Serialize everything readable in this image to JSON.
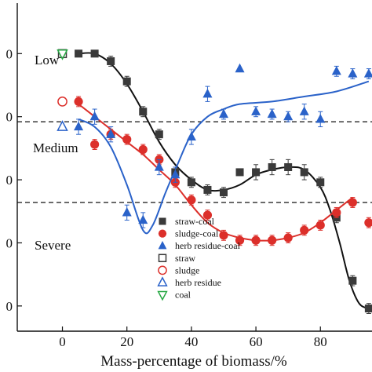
{
  "chart_data": {
    "type": "scatter",
    "title": "",
    "xlabel": "Mass-percentage of biomass/%",
    "ylabel": "",
    "xlim": [
      -14,
      96
    ],
    "ylim": [
      1.4,
      2.7
    ],
    "x_ticks": [
      0,
      20,
      40,
      60,
      80
    ],
    "y_ticks": [
      1.5,
      1.75,
      2.0,
      2.25,
      2.5
    ],
    "y_tick_labels": [
      "0",
      "0",
      "0",
      "0",
      "0"
    ],
    "grid": false,
    "legend_position": "bottom-center",
    "thresholds": [
      {
        "y": 2.23,
        "style": "dashed"
      },
      {
        "y": 1.91,
        "style": "dashed"
      }
    ],
    "zone_labels": [
      "Low",
      "Medium",
      "Severe"
    ],
    "series": [
      {
        "name": "straw-coal",
        "color": "#3a3a3a",
        "marker": "square",
        "filled": true,
        "points": [
          [
            5,
            2.5
          ],
          [
            10,
            2.5
          ],
          [
            15,
            2.47
          ],
          [
            20,
            2.39
          ],
          [
            25,
            2.27
          ],
          [
            30,
            2.18
          ],
          [
            35,
            2.03
          ],
          [
            40,
            1.99
          ],
          [
            45,
            1.96
          ],
          [
            50,
            1.95
          ],
          [
            55,
            2.03
          ],
          [
            60,
            2.03
          ],
          [
            65,
            2.05
          ],
          [
            70,
            2.05
          ],
          [
            75,
            2.03
          ],
          [
            80,
            1.99
          ],
          [
            85,
            1.85
          ],
          [
            90,
            1.6
          ],
          [
            95,
            1.49
          ]
        ],
        "err": [
          0,
          0,
          0.02,
          0.02,
          0.02,
          0.02,
          0.02,
          0.02,
          0.02,
          0.02,
          0,
          0.03,
          0.03,
          0.03,
          0.03,
          0.02,
          0.02,
          0.02,
          0.02
        ]
      },
      {
        "name": "sludge-coal",
        "color": "#dc2f2a",
        "marker": "circle",
        "filled": true,
        "points": [
          [
            5,
            2.31
          ],
          [
            10,
            2.14
          ],
          [
            15,
            2.18
          ],
          [
            20,
            2.16
          ],
          [
            25,
            2.12
          ],
          [
            30,
            2.08
          ],
          [
            35,
            1.99
          ],
          [
            40,
            1.92
          ],
          [
            45,
            1.86
          ],
          [
            50,
            1.78
          ],
          [
            55,
            1.76
          ],
          [
            60,
            1.76
          ],
          [
            65,
            1.76
          ],
          [
            70,
            1.77
          ],
          [
            75,
            1.8
          ],
          [
            80,
            1.82
          ],
          [
            85,
            1.87
          ],
          [
            90,
            1.91
          ],
          [
            95,
            1.83
          ]
        ],
        "err": [
          0.02,
          0.02,
          0.02,
          0.02,
          0.02,
          0.02,
          0.02,
          0.02,
          0.02,
          0.02,
          0.02,
          0.02,
          0.02,
          0.02,
          0.02,
          0.02,
          0.02,
          0.02,
          0.02
        ]
      },
      {
        "name": "herb residue-coal",
        "color": "#2a62c9",
        "marker": "triangle",
        "filled": true,
        "points": [
          [
            5,
            2.21
          ],
          [
            10,
            2.25
          ],
          [
            15,
            2.18
          ],
          [
            20,
            1.87
          ],
          [
            25,
            1.84
          ],
          [
            30,
            2.05
          ],
          [
            35,
            2.02
          ],
          [
            40,
            2.17
          ],
          [
            45,
            2.34
          ],
          [
            50,
            2.26
          ],
          [
            55,
            2.44
          ],
          [
            60,
            2.27
          ],
          [
            65,
            2.26
          ],
          [
            70,
            2.25
          ],
          [
            75,
            2.27
          ],
          [
            80,
            2.24
          ],
          [
            85,
            2.43
          ],
          [
            90,
            2.42
          ],
          [
            95,
            2.42
          ]
        ],
        "err": [
          0.03,
          0.03,
          0.03,
          0.03,
          0.03,
          0.03,
          0.03,
          0.03,
          0.03,
          0.02,
          0,
          0.02,
          0.02,
          0.02,
          0.03,
          0.03,
          0.02,
          0.02,
          0.02
        ]
      },
      {
        "name": "straw",
        "color": "#3a3a3a",
        "marker": "square",
        "filled": false,
        "points": [
          [
            0,
            2.5
          ]
        ]
      },
      {
        "name": "sludge",
        "color": "#dc2f2a",
        "marker": "circle",
        "filled": false,
        "points": [
          [
            0,
            2.31
          ]
        ]
      },
      {
        "name": "herb residue",
        "color": "#2a62c9",
        "marker": "triangle",
        "filled": false,
        "points": [
          [
            0,
            2.21
          ]
        ]
      },
      {
        "name": "coal",
        "color": "#27a844",
        "marker": "triangle-down",
        "filled": false,
        "points": [
          [
            0,
            2.5
          ]
        ]
      }
    ],
    "fit_curves": [
      {
        "series": "straw-coal",
        "color": "#111111",
        "points": [
          [
            5,
            2.5
          ],
          [
            10,
            2.5
          ],
          [
            15,
            2.46
          ],
          [
            20,
            2.38
          ],
          [
            25,
            2.27
          ],
          [
            30,
            2.15
          ],
          [
            35,
            2.06
          ],
          [
            40,
            2.0
          ],
          [
            45,
            1.96
          ],
          [
            50,
            1.96
          ],
          [
            55,
            1.98
          ],
          [
            60,
            2.02
          ],
          [
            65,
            2.04
          ],
          [
            70,
            2.05
          ],
          [
            75,
            2.04
          ],
          [
            80,
            1.97
          ],
          [
            83,
            1.88
          ],
          [
            86,
            1.75
          ],
          [
            89,
            1.6
          ],
          [
            92,
            1.51
          ],
          [
            95,
            1.49
          ]
        ]
      },
      {
        "series": "sludge-coal",
        "color": "#dc2f2a",
        "points": [
          [
            5,
            2.3
          ],
          [
            10,
            2.25
          ],
          [
            15,
            2.2
          ],
          [
            20,
            2.15
          ],
          [
            25,
            2.1
          ],
          [
            30,
            2.04
          ],
          [
            35,
            1.98
          ],
          [
            40,
            1.9
          ],
          [
            45,
            1.83
          ],
          [
            50,
            1.79
          ],
          [
            55,
            1.77
          ],
          [
            60,
            1.76
          ],
          [
            65,
            1.76
          ],
          [
            70,
            1.77
          ],
          [
            75,
            1.79
          ],
          [
            80,
            1.83
          ],
          [
            85,
            1.88
          ],
          [
            90,
            1.93
          ]
        ]
      },
      {
        "series": "herb residue-coal",
        "color": "#2a62c9",
        "points": [
          [
            5,
            2.24
          ],
          [
            10,
            2.21
          ],
          [
            15,
            2.13
          ],
          [
            20,
            1.98
          ],
          [
            25,
            1.8
          ],
          [
            28,
            1.82
          ],
          [
            32,
            1.95
          ],
          [
            36,
            2.07
          ],
          [
            40,
            2.18
          ],
          [
            45,
            2.25
          ],
          [
            50,
            2.28
          ],
          [
            55,
            2.3
          ],
          [
            65,
            2.31
          ],
          [
            75,
            2.33
          ],
          [
            85,
            2.35
          ],
          [
            95,
            2.39
          ]
        ]
      }
    ]
  }
}
